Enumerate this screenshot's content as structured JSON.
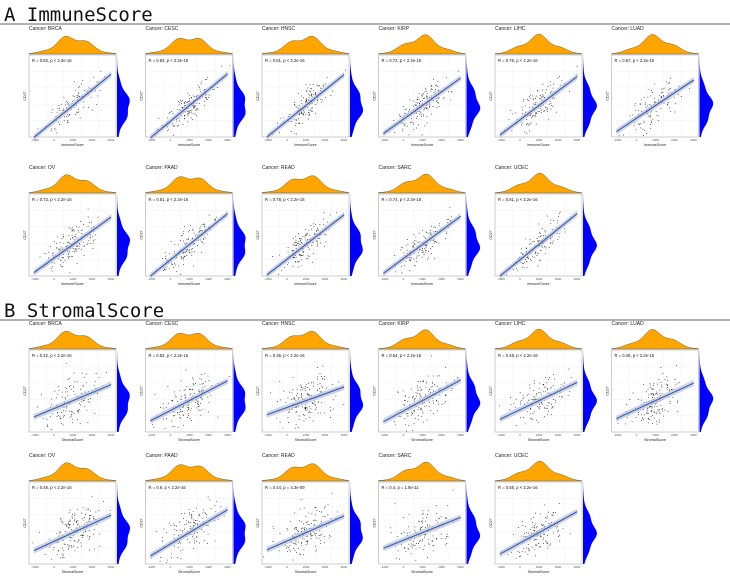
{
  "chart_data": [
    {
      "type": "scatter",
      "panel_label": "A",
      "title": "ImmuneScore",
      "xlabel": "ImmuneScore",
      "ylabel": "CD27",
      "grid": true,
      "regression": "linear with confidence band",
      "marginal_density": {
        "x_color": "#FFA500",
        "y_color": "#0000FF"
      },
      "colors": {
        "points": "#000000",
        "fit_line": "#3A5BB5",
        "band": "#B8C2D8"
      },
      "panels": [
        {
          "cancer_label": "Cancer: BRCA",
          "annotation": "R = 0.82, p < 2.2e-16",
          "R": 0.82
        },
        {
          "cancer_label": "Cancer: CESC",
          "annotation": "R = 0.83, p < 2.2e-16",
          "R": 0.83
        },
        {
          "cancer_label": "Cancer: HNSC",
          "annotation": "R = 0.81, p < 2.2e-16",
          "R": 0.81
        },
        {
          "cancer_label": "Cancer: KIRP",
          "annotation": "R = 0.72, p < 2.2e-16",
          "R": 0.72
        },
        {
          "cancer_label": "Cancer: LIHC",
          "annotation": "R = 0.76, p < 2.2e-16",
          "R": 0.76
        },
        {
          "cancer_label": "Cancer: LUAD",
          "annotation": "R = 0.67, p < 2.2e-16",
          "R": 0.67
        },
        {
          "cancer_label": "Cancer: OV",
          "annotation": "R = 0.72, p < 2.2e-16",
          "R": 0.72
        },
        {
          "cancer_label": "Cancer: PAAD",
          "annotation": "R = 0.81, p < 2.2e-16",
          "R": 0.81
        },
        {
          "cancer_label": "Cancer: READ",
          "annotation": "R = 0.78, p < 2.2e-16",
          "R": 0.78
        },
        {
          "cancer_label": "Cancer: SARC",
          "annotation": "R = 0.74, p < 2.2e-16",
          "R": 0.74
        },
        {
          "cancer_label": "Cancer: UCEC",
          "annotation": "R = 0.81, p < 2.2e-16",
          "R": 0.81
        }
      ]
    },
    {
      "type": "scatter",
      "panel_label": "B",
      "title": "StromalScore",
      "xlabel": "StromalScore",
      "ylabel": "CD27",
      "grid": true,
      "regression": "linear with confidence band",
      "marginal_density": {
        "x_color": "#FFA500",
        "y_color": "#0000FF"
      },
      "colors": {
        "points": "#000000",
        "fit_line": "#3A5BB5",
        "band": "#B8C2D8"
      },
      "panels": [
        {
          "cancer_label": "Cancer: BRCA",
          "annotation": "R = 0.42, p < 2.2e-16",
          "R": 0.42
        },
        {
          "cancer_label": "Cancer: CESC",
          "annotation": "R = 0.52, p < 2.2e-16",
          "R": 0.52
        },
        {
          "cancer_label": "Cancer: HNSC",
          "annotation": "R = 0.36, p < 2.2e-16",
          "R": 0.36
        },
        {
          "cancer_label": "Cancer: KIRP",
          "annotation": "R = 0.54, p < 2.2e-16",
          "R": 0.54
        },
        {
          "cancer_label": "Cancer: LIHC",
          "annotation": "R = 0.48, p < 2.2e-16",
          "R": 0.48
        },
        {
          "cancer_label": "Cancer: LUAD",
          "annotation": "R = 0.46, p < 2.2e-16",
          "R": 0.46
        },
        {
          "cancer_label": "Cancer: OV",
          "annotation": "R = 0.46, p < 2.2e-16",
          "R": 0.46
        },
        {
          "cancer_label": "Cancer: PAAD",
          "annotation": "R = 0.6, p < 2.2e-16",
          "R": 0.6
        },
        {
          "cancer_label": "Cancer: READ",
          "annotation": "R = 0.44, p = 4.3e-09",
          "R": 0.44
        },
        {
          "cancer_label": "Cancer: SARC",
          "annotation": "R = 0.4, p = 1.9e-11",
          "R": 0.4
        },
        {
          "cancer_label": "Cancer: UCEC",
          "annotation": "R = 0.55, p < 2.2e-16",
          "R": 0.55
        }
      ]
    }
  ]
}
